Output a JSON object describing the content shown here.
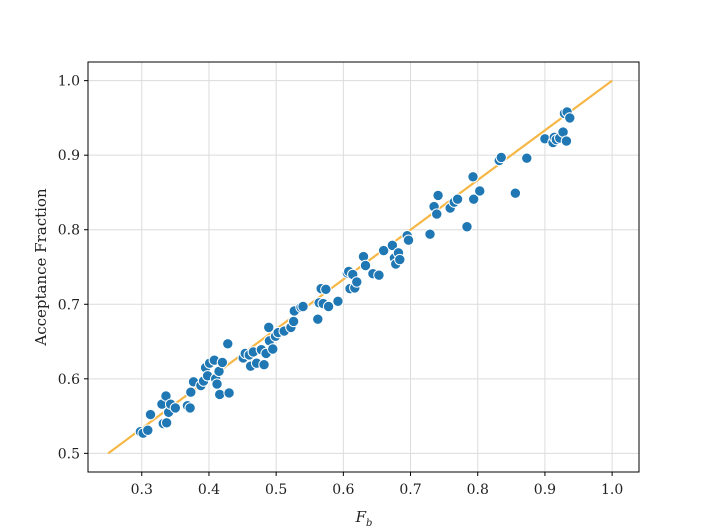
{
  "chart_data": {
    "type": "scatter",
    "xlabel": "F_b",
    "ylabel": "Acceptance Fraction",
    "xlim": [
      0.22,
      1.04
    ],
    "ylim": [
      0.475,
      1.025
    ],
    "xticks": [
      0.3,
      0.4,
      0.5,
      0.6,
      0.7,
      0.8,
      0.9,
      1.0
    ],
    "yticks": [
      0.5,
      0.6,
      0.7,
      0.8,
      0.9,
      1.0
    ],
    "grid": true,
    "colors": {
      "points": "#1f77b4",
      "line": "#f6b746"
    },
    "reference_line": {
      "x": [
        0.25,
        1.0
      ],
      "y": [
        0.5,
        1.0
      ]
    },
    "points": [
      {
        "x": 0.298,
        "y": 0.529
      },
      {
        "x": 0.302,
        "y": 0.527
      },
      {
        "x": 0.309,
        "y": 0.531
      },
      {
        "x": 0.313,
        "y": 0.552
      },
      {
        "x": 0.33,
        "y": 0.566
      },
      {
        "x": 0.332,
        "y": 0.54
      },
      {
        "x": 0.336,
        "y": 0.577
      },
      {
        "x": 0.337,
        "y": 0.541
      },
      {
        "x": 0.34,
        "y": 0.555
      },
      {
        "x": 0.343,
        "y": 0.566
      },
      {
        "x": 0.35,
        "y": 0.561
      },
      {
        "x": 0.368,
        "y": 0.564
      },
      {
        "x": 0.372,
        "y": 0.561
      },
      {
        "x": 0.373,
        "y": 0.582
      },
      {
        "x": 0.377,
        "y": 0.596
      },
      {
        "x": 0.388,
        "y": 0.591
      },
      {
        "x": 0.392,
        "y": 0.597
      },
      {
        "x": 0.395,
        "y": 0.615
      },
      {
        "x": 0.398,
        "y": 0.604
      },
      {
        "x": 0.401,
        "y": 0.621
      },
      {
        "x": 0.408,
        "y": 0.625
      },
      {
        "x": 0.41,
        "y": 0.6
      },
      {
        "x": 0.412,
        "y": 0.593
      },
      {
        "x": 0.415,
        "y": 0.61
      },
      {
        "x": 0.416,
        "y": 0.579
      },
      {
        "x": 0.42,
        "y": 0.622
      },
      {
        "x": 0.428,
        "y": 0.647
      },
      {
        "x": 0.43,
        "y": 0.581
      },
      {
        "x": 0.451,
        "y": 0.628
      },
      {
        "x": 0.454,
        "y": 0.634
      },
      {
        "x": 0.46,
        "y": 0.632
      },
      {
        "x": 0.462,
        "y": 0.617
      },
      {
        "x": 0.466,
        "y": 0.636
      },
      {
        "x": 0.471,
        "y": 0.621
      },
      {
        "x": 0.478,
        "y": 0.639
      },
      {
        "x": 0.482,
        "y": 0.619
      },
      {
        "x": 0.485,
        "y": 0.634
      },
      {
        "x": 0.489,
        "y": 0.669
      },
      {
        "x": 0.49,
        "y": 0.651
      },
      {
        "x": 0.495,
        "y": 0.64
      },
      {
        "x": 0.499,
        "y": 0.657
      },
      {
        "x": 0.503,
        "y": 0.662
      },
      {
        "x": 0.512,
        "y": 0.664
      },
      {
        "x": 0.522,
        "y": 0.669
      },
      {
        "x": 0.526,
        "y": 0.677
      },
      {
        "x": 0.527,
        "y": 0.691
      },
      {
        "x": 0.537,
        "y": 0.696
      },
      {
        "x": 0.54,
        "y": 0.697
      },
      {
        "x": 0.562,
        "y": 0.68
      },
      {
        "x": 0.564,
        "y": 0.702
      },
      {
        "x": 0.567,
        "y": 0.721
      },
      {
        "x": 0.57,
        "y": 0.701
      },
      {
        "x": 0.574,
        "y": 0.72
      },
      {
        "x": 0.578,
        "y": 0.697
      },
      {
        "x": 0.592,
        "y": 0.704
      },
      {
        "x": 0.606,
        "y": 0.742
      },
      {
        "x": 0.608,
        "y": 0.744
      },
      {
        "x": 0.61,
        "y": 0.721
      },
      {
        "x": 0.614,
        "y": 0.74
      },
      {
        "x": 0.617,
        "y": 0.722
      },
      {
        "x": 0.62,
        "y": 0.73
      },
      {
        "x": 0.63,
        "y": 0.764
      },
      {
        "x": 0.633,
        "y": 0.752
      },
      {
        "x": 0.644,
        "y": 0.741
      },
      {
        "x": 0.653,
        "y": 0.739
      },
      {
        "x": 0.66,
        "y": 0.772
      },
      {
        "x": 0.673,
        "y": 0.779
      },
      {
        "x": 0.676,
        "y": 0.762
      },
      {
        "x": 0.678,
        "y": 0.754
      },
      {
        "x": 0.682,
        "y": 0.769
      },
      {
        "x": 0.684,
        "y": 0.76
      },
      {
        "x": 0.695,
        "y": 0.792
      },
      {
        "x": 0.697,
        "y": 0.786
      },
      {
        "x": 0.729,
        "y": 0.794
      },
      {
        "x": 0.735,
        "y": 0.831
      },
      {
        "x": 0.739,
        "y": 0.821
      },
      {
        "x": 0.741,
        "y": 0.846
      },
      {
        "x": 0.759,
        "y": 0.829
      },
      {
        "x": 0.765,
        "y": 0.837
      },
      {
        "x": 0.77,
        "y": 0.841
      },
      {
        "x": 0.784,
        "y": 0.804
      },
      {
        "x": 0.793,
        "y": 0.871
      },
      {
        "x": 0.794,
        "y": 0.841
      },
      {
        "x": 0.803,
        "y": 0.852
      },
      {
        "x": 0.832,
        "y": 0.893
      },
      {
        "x": 0.835,
        "y": 0.897
      },
      {
        "x": 0.856,
        "y": 0.849
      },
      {
        "x": 0.873,
        "y": 0.896
      },
      {
        "x": 0.9,
        "y": 0.922
      },
      {
        "x": 0.912,
        "y": 0.917
      },
      {
        "x": 0.914,
        "y": 0.924
      },
      {
        "x": 0.917,
        "y": 0.921
      },
      {
        "x": 0.922,
        "y": 0.923
      },
      {
        "x": 0.927,
        "y": 0.931
      },
      {
        "x": 0.929,
        "y": 0.956
      },
      {
        "x": 0.932,
        "y": 0.919
      },
      {
        "x": 0.933,
        "y": 0.958
      },
      {
        "x": 0.937,
        "y": 0.95
      }
    ]
  }
}
